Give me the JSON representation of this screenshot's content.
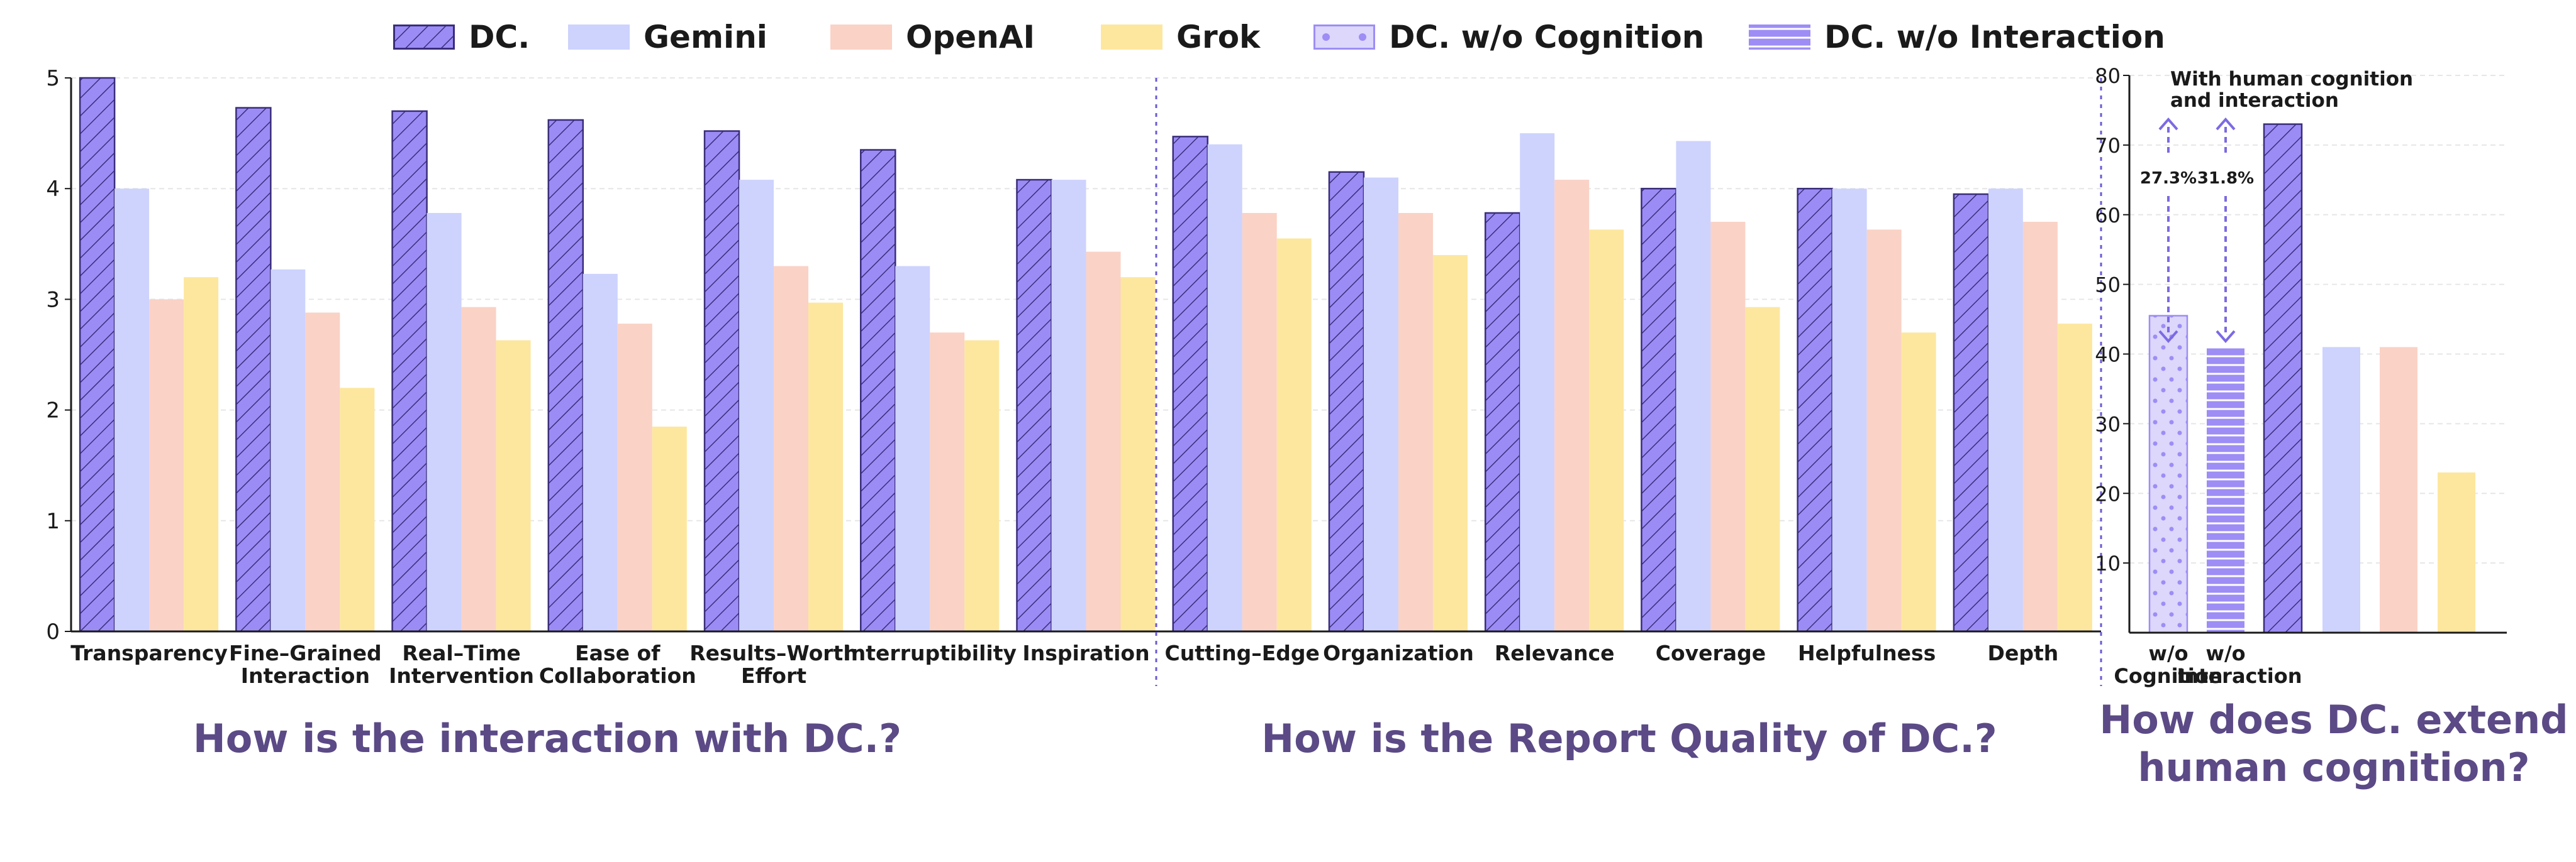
{
  "legend": [
    {
      "key": "dc",
      "label": "DC."
    },
    {
      "key": "gemini",
      "label": "Gemini"
    },
    {
      "key": "openai",
      "label": "OpenAI"
    },
    {
      "key": "grok",
      "label": "Grok"
    },
    {
      "key": "dc_wo_cognition",
      "label": "DC. w/o Cognition"
    },
    {
      "key": "dc_wo_interaction",
      "label": "DC. w/o Interaction"
    }
  ],
  "colors": {
    "dc": "#9b8cf5",
    "dc_edge": "#3a2d7a",
    "gemini": "#cdd3fd",
    "openai": "#fad2c6",
    "grok": "#fde79f",
    "wo_cognition": "#dcd7fb",
    "wo_interaction": "#9d8df5",
    "divider": "#6a5ad6",
    "title": "#5b4a86"
  },
  "section_titles": {
    "interaction": "How is the interaction with DC.?",
    "quality": "How is the Report Quality of DC.?",
    "cognition_line1": "How does DC. extend",
    "cognition_line2": "human cognition?"
  },
  "chart_data": [
    {
      "type": "bar",
      "ylim": [
        0,
        5
      ],
      "yticks": [
        0,
        1,
        2,
        3,
        4,
        5
      ],
      "categories": [
        [
          "Transparency"
        ],
        [
          "Fine–Grained",
          "Interaction"
        ],
        [
          "Real–Time",
          "Intervention"
        ],
        [
          "Ease of",
          "Collaboration"
        ],
        [
          "Results–Worth",
          "Effort"
        ],
        [
          "Interruptibility"
        ],
        [
          "Inspiration"
        ],
        [
          "Cutting–Edge"
        ],
        [
          "Organization"
        ],
        [
          "Relevance"
        ],
        [
          "Coverage"
        ],
        [
          "Helpfulness"
        ],
        [
          "Depth"
        ]
      ],
      "series": [
        {
          "name": "DC.",
          "values": [
            5.0,
            4.73,
            4.7,
            4.62,
            4.52,
            4.35,
            4.08,
            4.47,
            4.15,
            3.78,
            4.0,
            4.0,
            3.95
          ]
        },
        {
          "name": "Gemini",
          "values": [
            4.0,
            3.27,
            3.78,
            3.23,
            4.08,
            3.3,
            4.08,
            4.4,
            4.1,
            4.5,
            4.43,
            4.0,
            4.0
          ]
        },
        {
          "name": "OpenAI",
          "values": [
            3.0,
            2.88,
            2.93,
            2.78,
            3.3,
            2.7,
            3.43,
            3.78,
            3.78,
            4.08,
            3.7,
            3.63,
            3.7
          ]
        },
        {
          "name": "Grok",
          "values": [
            3.2,
            2.2,
            2.63,
            1.85,
            2.97,
            2.63,
            3.2,
            3.55,
            3.4,
            3.63,
            2.93,
            2.7,
            2.78
          ]
        }
      ],
      "grid": true
    },
    {
      "type": "bar",
      "ylim": [
        0,
        80
      ],
      "yticks": [
        10,
        20,
        30,
        40,
        50,
        60,
        70,
        80
      ],
      "categories": [
        [
          "w/o",
          "Cognition"
        ],
        [
          "w/o",
          "Interaction"
        ],
        [
          ""
        ],
        [
          ""
        ],
        [
          ""
        ],
        [
          ""
        ]
      ],
      "values": [
        45.5,
        41,
        73,
        41,
        41,
        23
      ],
      "annotations": {
        "header_line1": "With human cognition",
        "header_line2": "and interaction",
        "gain_cognition": "27.3%",
        "gain_interaction": "31.8%"
      },
      "grid": true
    }
  ]
}
